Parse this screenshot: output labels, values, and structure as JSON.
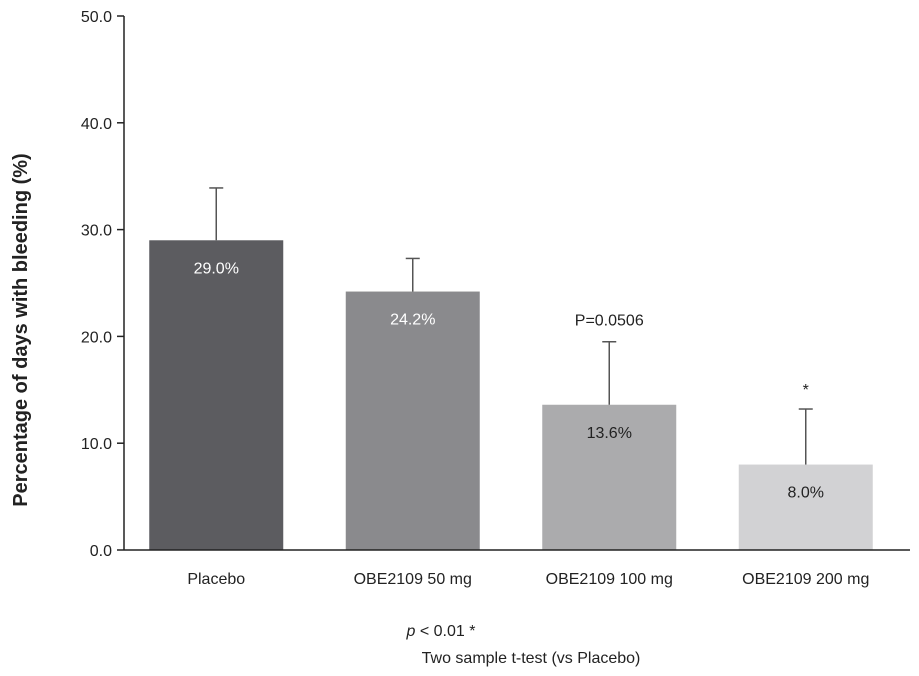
{
  "chart_data": {
    "type": "bar",
    "title": "",
    "xlabel": "",
    "ylabel": "Percentage of days with bleeding (%)",
    "ylim": [
      0,
      50
    ],
    "yticks": [
      0,
      10,
      20,
      30,
      40,
      50
    ],
    "ytick_labels": [
      "0.0",
      "10.0",
      "20.0",
      "30.0",
      "40.0",
      "50.0"
    ],
    "categories": [
      "Placebo",
      "OBE2109 50 mg",
      "OBE2109 100 mg",
      "OBE2109 200 mg"
    ],
    "values": [
      29.0,
      24.2,
      13.6,
      8.0
    ],
    "error_upper": [
      33.9,
      27.3,
      19.5,
      13.2
    ],
    "value_labels": [
      "29.0%",
      "24.2%",
      "13.6%",
      "8.0%"
    ],
    "annotations": [
      "",
      "",
      "P=0.0506",
      "*"
    ],
    "grid": false,
    "bar_colors": [
      "#5c5c60",
      "#8a8a8d",
      "#ababad",
      "#d2d2d4"
    ],
    "label_colors": [
      "#ffffff",
      "#ffffff",
      "#222222",
      "#222222"
    ]
  },
  "footnote": {
    "p_symbol": "p",
    "p_rest": " < 0.01  *",
    "test": "Two sample t-test (vs Placebo)"
  }
}
